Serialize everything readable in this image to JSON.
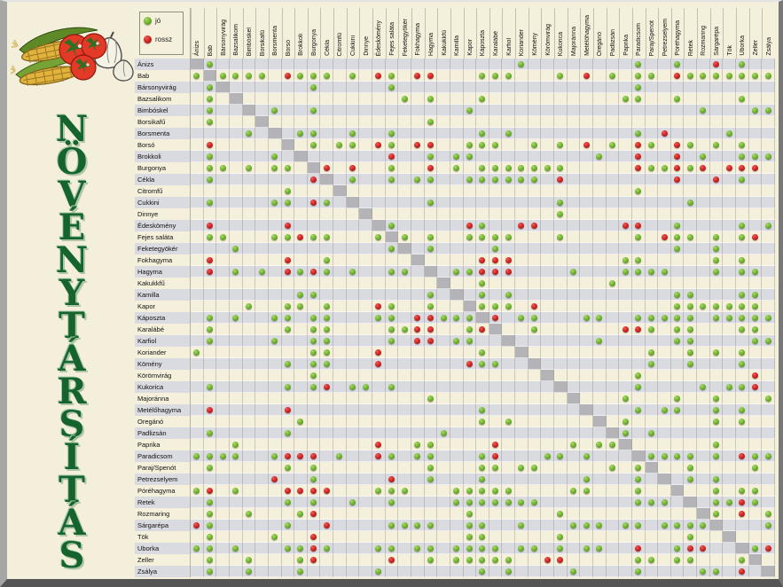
{
  "title": "NÖVÉNYTÁRSÍTÁS",
  "legend": {
    "good_label": "jó",
    "bad_label": "rossz"
  },
  "colors": {
    "good_dot": "#6aaf28",
    "bad_dot": "#c8201f",
    "title_green": "#15632d",
    "background_cream": "#f5f0db",
    "row_stripe": "#dadae1",
    "diagonal_gray": "#b4b4b8"
  },
  "chart_data": {
    "type": "heatmap",
    "title": "NÖVÉNYTÁRSÍTÁS",
    "legend": [
      {
        "label": "jó",
        "value": "good",
        "color": "#6aaf28"
      },
      {
        "label": "rossz",
        "value": "bad",
        "color": "#c8201f"
      }
    ],
    "note": "Symmetric companion-planting matrix; rows and columns share the same 45 plants; diagonal cells are gray (self).",
    "plants": [
      "Ánizs",
      "Bab",
      "Bársonyvirág",
      "Bazsalikom",
      "Bimbóskel",
      "Borsikafű",
      "Borsmenta",
      "Borsó",
      "Brokkoli",
      "Burgonya",
      "Cékla",
      "Citromfű",
      "Cukkini",
      "Dinnye",
      "Édeskömény",
      "Fejes saláta",
      "Feketegyökér",
      "Fokhagyma",
      "Hagyma",
      "Kakukkfű",
      "Kamilla",
      "Kapor",
      "Káposzta",
      "Karalábé",
      "Karfiol",
      "Koriander",
      "Kömény",
      "Körömvirág",
      "Kukorica",
      "Majoránna",
      "Metélőhagyma",
      "Oregánó",
      "Padlizsán",
      "Paprika",
      "Paradicsom",
      "Paraj/Spenót",
      "Petrezselyem",
      "Póréhagyma",
      "Retek",
      "Rozmaring",
      "Sárgarépa",
      "Tök",
      "Uborka",
      "Zeller",
      "Zsálya"
    ],
    "pairs": [
      [
        1,
        2,
        "good"
      ],
      [
        1,
        26,
        "good"
      ],
      [
        1,
        35,
        "good"
      ],
      [
        1,
        38,
        "good"
      ],
      [
        1,
        41,
        "bad"
      ],
      [
        1,
        43,
        "good"
      ],
      [
        2,
        3,
        "good"
      ],
      [
        2,
        4,
        "good"
      ],
      [
        2,
        5,
        "good"
      ],
      [
        2,
        6,
        "good"
      ],
      [
        2,
        8,
        "bad"
      ],
      [
        2,
        9,
        "good"
      ],
      [
        2,
        10,
        "good"
      ],
      [
        2,
        11,
        "good"
      ],
      [
        2,
        13,
        "good"
      ],
      [
        2,
        15,
        "bad"
      ],
      [
        2,
        16,
        "good"
      ],
      [
        2,
        18,
        "bad"
      ],
      [
        2,
        19,
        "bad"
      ],
      [
        2,
        23,
        "good"
      ],
      [
        2,
        24,
        "good"
      ],
      [
        2,
        25,
        "good"
      ],
      [
        2,
        29,
        "good"
      ],
      [
        2,
        31,
        "bad"
      ],
      [
        2,
        33,
        "good"
      ],
      [
        2,
        35,
        "good"
      ],
      [
        2,
        36,
        "good"
      ],
      [
        2,
        38,
        "bad"
      ],
      [
        2,
        39,
        "good"
      ],
      [
        2,
        40,
        "good"
      ],
      [
        2,
        41,
        "good"
      ],
      [
        2,
        42,
        "good"
      ],
      [
        2,
        43,
        "good"
      ],
      [
        2,
        44,
        "good"
      ],
      [
        2,
        45,
        "good"
      ],
      [
        3,
        10,
        "good"
      ],
      [
        3,
        16,
        "good"
      ],
      [
        3,
        35,
        "good"
      ],
      [
        4,
        17,
        "good"
      ],
      [
        4,
        19,
        "good"
      ],
      [
        4,
        23,
        "good"
      ],
      [
        4,
        34,
        "good"
      ],
      [
        4,
        35,
        "good"
      ],
      [
        4,
        38,
        "good"
      ],
      [
        4,
        43,
        "good"
      ],
      [
        5,
        7,
        "good"
      ],
      [
        5,
        10,
        "good"
      ],
      [
        5,
        22,
        "good"
      ],
      [
        5,
        40,
        "good"
      ],
      [
        5,
        44,
        "good"
      ],
      [
        5,
        45,
        "good"
      ],
      [
        6,
        19,
        "good"
      ],
      [
        7,
        9,
        "good"
      ],
      [
        7,
        10,
        "good"
      ],
      [
        7,
        13,
        "good"
      ],
      [
        7,
        16,
        "good"
      ],
      [
        7,
        23,
        "good"
      ],
      [
        7,
        25,
        "good"
      ],
      [
        7,
        35,
        "good"
      ],
      [
        7,
        37,
        "bad"
      ],
      [
        7,
        42,
        "good"
      ],
      [
        8,
        10,
        "good"
      ],
      [
        8,
        12,
        "good"
      ],
      [
        8,
        13,
        "good"
      ],
      [
        8,
        15,
        "bad"
      ],
      [
        8,
        16,
        "good"
      ],
      [
        8,
        18,
        "bad"
      ],
      [
        8,
        19,
        "bad"
      ],
      [
        8,
        22,
        "good"
      ],
      [
        8,
        23,
        "good"
      ],
      [
        8,
        24,
        "good"
      ],
      [
        8,
        27,
        "good"
      ],
      [
        8,
        29,
        "good"
      ],
      [
        8,
        31,
        "bad"
      ],
      [
        8,
        33,
        "good"
      ],
      [
        8,
        35,
        "bad"
      ],
      [
        8,
        36,
        "good"
      ],
      [
        8,
        38,
        "bad"
      ],
      [
        8,
        39,
        "good"
      ],
      [
        8,
        41,
        "good"
      ],
      [
        8,
        43,
        "good"
      ],
      [
        9,
        16,
        "bad"
      ],
      [
        9,
        19,
        "good"
      ],
      [
        9,
        21,
        "good"
      ],
      [
        9,
        22,
        "good"
      ],
      [
        9,
        32,
        "good"
      ],
      [
        9,
        35,
        "bad"
      ],
      [
        9,
        38,
        "bad"
      ],
      [
        9,
        40,
        "good"
      ],
      [
        9,
        43,
        "good"
      ],
      [
        9,
        44,
        "good"
      ],
      [
        9,
        45,
        "good"
      ],
      [
        10,
        11,
        "bad"
      ],
      [
        10,
        13,
        "bad"
      ],
      [
        10,
        16,
        "good"
      ],
      [
        10,
        19,
        "bad"
      ],
      [
        10,
        21,
        "good"
      ],
      [
        10,
        23,
        "good"
      ],
      [
        10,
        24,
        "good"
      ],
      [
        10,
        25,
        "good"
      ],
      [
        10,
        26,
        "good"
      ],
      [
        10,
        27,
        "good"
      ],
      [
        10,
        28,
        "good"
      ],
      [
        10,
        29,
        "good"
      ],
      [
        10,
        35,
        "bad"
      ],
      [
        10,
        36,
        "good"
      ],
      [
        10,
        37,
        "good"
      ],
      [
        10,
        38,
        "bad"
      ],
      [
        10,
        39,
        "good"
      ],
      [
        10,
        40,
        "bad"
      ],
      [
        10,
        42,
        "bad"
      ],
      [
        10,
        43,
        "bad"
      ],
      [
        10,
        44,
        "bad"
      ],
      [
        11,
        13,
        "good"
      ],
      [
        11,
        16,
        "good"
      ],
      [
        11,
        18,
        "good"
      ],
      [
        11,
        19,
        "good"
      ],
      [
        11,
        22,
        "good"
      ],
      [
        11,
        23,
        "good"
      ],
      [
        11,
        24,
        "good"
      ],
      [
        11,
        25,
        "good"
      ],
      [
        11,
        26,
        "good"
      ],
      [
        11,
        27,
        "good"
      ],
      [
        11,
        29,
        "bad"
      ],
      [
        11,
        38,
        "bad"
      ],
      [
        11,
        41,
        "bad"
      ],
      [
        11,
        43,
        "good"
      ],
      [
        12,
        35,
        "good"
      ],
      [
        13,
        19,
        "good"
      ],
      [
        13,
        29,
        "good"
      ],
      [
        13,
        39,
        "good"
      ],
      [
        14,
        29,
        "good"
      ],
      [
        15,
        16,
        "good"
      ],
      [
        15,
        22,
        "bad"
      ],
      [
        15,
        23,
        "good"
      ],
      [
        15,
        26,
        "bad"
      ],
      [
        15,
        27,
        "bad"
      ],
      [
        15,
        34,
        "bad"
      ],
      [
        15,
        35,
        "bad"
      ],
      [
        15,
        38,
        "good"
      ],
      [
        15,
        43,
        "good"
      ],
      [
        15,
        45,
        "good"
      ],
      [
        16,
        17,
        "good"
      ],
      [
        16,
        19,
        "good"
      ],
      [
        16,
        22,
        "good"
      ],
      [
        16,
        23,
        "good"
      ],
      [
        16,
        24,
        "good"
      ],
      [
        16,
        25,
        "good"
      ],
      [
        16,
        29,
        "good"
      ],
      [
        16,
        35,
        "good"
      ],
      [
        16,
        37,
        "bad"
      ],
      [
        16,
        38,
        "good"
      ],
      [
        16,
        39,
        "good"
      ],
      [
        16,
        41,
        "good"
      ],
      [
        16,
        43,
        "good"
      ],
      [
        16,
        44,
        "bad"
      ],
      [
        17,
        19,
        "good"
      ],
      [
        17,
        24,
        "good"
      ],
      [
        17,
        38,
        "good"
      ],
      [
        17,
        41,
        "good"
      ],
      [
        18,
        23,
        "bad"
      ],
      [
        18,
        24,
        "bad"
      ],
      [
        18,
        25,
        "bad"
      ],
      [
        18,
        34,
        "good"
      ],
      [
        18,
        35,
        "good"
      ],
      [
        18,
        41,
        "good"
      ],
      [
        18,
        43,
        "good"
      ],
      [
        19,
        21,
        "good"
      ],
      [
        19,
        22,
        "good"
      ],
      [
        19,
        23,
        "bad"
      ],
      [
        19,
        24,
        "bad"
      ],
      [
        19,
        25,
        "bad"
      ],
      [
        19,
        30,
        "good"
      ],
      [
        19,
        34,
        "good"
      ],
      [
        19,
        35,
        "good"
      ],
      [
        19,
        36,
        "good"
      ],
      [
        19,
        37,
        "good"
      ],
      [
        19,
        41,
        "good"
      ],
      [
        19,
        43,
        "good"
      ],
      [
        19,
        44,
        "good"
      ],
      [
        20,
        23,
        "good"
      ],
      [
        20,
        33,
        "good"
      ],
      [
        21,
        23,
        "good"
      ],
      [
        21,
        25,
        "good"
      ],
      [
        21,
        38,
        "good"
      ],
      [
        21,
        39,
        "good"
      ],
      [
        21,
        43,
        "good"
      ],
      [
        21,
        44,
        "good"
      ],
      [
        22,
        23,
        "good"
      ],
      [
        22,
        24,
        "good"
      ],
      [
        22,
        25,
        "good"
      ],
      [
        22,
        27,
        "bad"
      ],
      [
        22,
        38,
        "good"
      ],
      [
        22,
        39,
        "good"
      ],
      [
        22,
        40,
        "good"
      ],
      [
        22,
        41,
        "good"
      ],
      [
        22,
        42,
        "good"
      ],
      [
        22,
        43,
        "good"
      ],
      [
        22,
        44,
        "good"
      ],
      [
        23,
        24,
        "bad"
      ],
      [
        23,
        26,
        "good"
      ],
      [
        23,
        27,
        "good"
      ],
      [
        23,
        31,
        "good"
      ],
      [
        23,
        32,
        "good"
      ],
      [
        23,
        35,
        "good"
      ],
      [
        23,
        36,
        "good"
      ],
      [
        23,
        37,
        "good"
      ],
      [
        23,
        38,
        "good"
      ],
      [
        23,
        39,
        "good"
      ],
      [
        23,
        41,
        "good"
      ],
      [
        23,
        42,
        "good"
      ],
      [
        23,
        43,
        "good"
      ],
      [
        23,
        44,
        "good"
      ],
      [
        23,
        45,
        "good"
      ],
      [
        24,
        27,
        "good"
      ],
      [
        24,
        34,
        "bad"
      ],
      [
        24,
        35,
        "bad"
      ],
      [
        24,
        36,
        "good"
      ],
      [
        24,
        38,
        "good"
      ],
      [
        24,
        39,
        "good"
      ],
      [
        24,
        43,
        "good"
      ],
      [
        24,
        44,
        "good"
      ],
      [
        25,
        32,
        "good"
      ],
      [
        25,
        38,
        "good"
      ],
      [
        25,
        39,
        "good"
      ],
      [
        25,
        44,
        "good"
      ],
      [
        25,
        45,
        "good"
      ],
      [
        26,
        36,
        "good"
      ],
      [
        26,
        39,
        "good"
      ],
      [
        26,
        41,
        "good"
      ],
      [
        26,
        43,
        "good"
      ],
      [
        27,
        36,
        "good"
      ],
      [
        27,
        39,
        "good"
      ],
      [
        27,
        43,
        "good"
      ],
      [
        28,
        35,
        "good"
      ],
      [
        28,
        44,
        "bad"
      ],
      [
        29,
        35,
        "good"
      ],
      [
        29,
        40,
        "good"
      ],
      [
        29,
        42,
        "good"
      ],
      [
        29,
        43,
        "good"
      ],
      [
        29,
        44,
        "bad"
      ],
      [
        30,
        34,
        "good"
      ],
      [
        30,
        38,
        "good"
      ],
      [
        30,
        41,
        "good"
      ],
      [
        30,
        45,
        "good"
      ],
      [
        31,
        35,
        "good"
      ],
      [
        31,
        37,
        "good"
      ],
      [
        31,
        38,
        "good"
      ],
      [
        31,
        41,
        "good"
      ],
      [
        31,
        43,
        "good"
      ],
      [
        32,
        34,
        "good"
      ],
      [
        32,
        41,
        "good"
      ],
      [
        32,
        43,
        "good"
      ],
      [
        33,
        34,
        "good"
      ],
      [
        33,
        36,
        "good"
      ],
      [
        34,
        41,
        "good"
      ],
      [
        35,
        36,
        "good"
      ],
      [
        35,
        37,
        "good"
      ],
      [
        35,
        38,
        "good"
      ],
      [
        35,
        39,
        "good"
      ],
      [
        35,
        41,
        "good"
      ],
      [
        35,
        43,
        "bad"
      ],
      [
        35,
        44,
        "good"
      ],
      [
        35,
        45,
        "good"
      ],
      [
        36,
        39,
        "good"
      ],
      [
        36,
        44,
        "good"
      ],
      [
        37,
        39,
        "good"
      ],
      [
        37,
        41,
        "good"
      ],
      [
        38,
        41,
        "good"
      ],
      [
        38,
        43,
        "good"
      ],
      [
        38,
        44,
        "good"
      ],
      [
        39,
        41,
        "good"
      ],
      [
        39,
        42,
        "good"
      ],
      [
        39,
        43,
        "bad"
      ],
      [
        39,
        44,
        "good"
      ],
      [
        40,
        41,
        "good"
      ],
      [
        40,
        43,
        "bad"
      ],
      [
        40,
        45,
        "good"
      ],
      [
        41,
        45,
        "good"
      ],
      [
        43,
        44,
        "good"
      ],
      [
        43,
        45,
        "bad"
      ]
    ]
  }
}
